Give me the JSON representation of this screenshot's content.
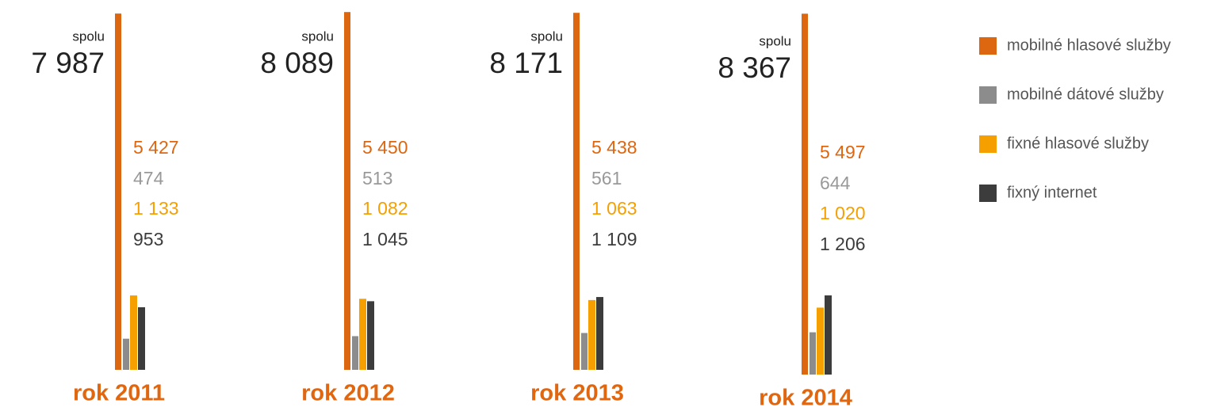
{
  "chart_data": {
    "type": "bar",
    "categories": [
      "rok 2011",
      "rok 2012",
      "rok 2013",
      "rok 2014"
    ],
    "total_label": "spolu",
    "totals": {
      "values": [
        7987,
        8089,
        8171,
        8367
      ],
      "value_labels": [
        "7 987",
        "8 089",
        "8 171",
        "8 367"
      ]
    },
    "series": [
      {
        "name": "mobilné hlasové služby",
        "color": "#dd6611",
        "values": [
          5427,
          5450,
          5438,
          5497
        ],
        "value_labels": [
          "5 427",
          "5 450",
          "5 438",
          "5 497"
        ]
      },
      {
        "name": "mobilné dátové služby",
        "color": "#8c8c8c",
        "values": [
          474,
          513,
          561,
          644
        ],
        "value_labels": [
          "474",
          "513",
          "561",
          "644"
        ]
      },
      {
        "name": "fixné hlasové služby",
        "color": "#f5a000",
        "values": [
          1133,
          1082,
          1063,
          1020
        ],
        "value_labels": [
          "1 133",
          "1 082",
          "1 063",
          "1 020"
        ]
      },
      {
        "name": "fixný internet",
        "color": "#3c3c3c",
        "values": [
          953,
          1045,
          1109,
          1206
        ],
        "value_labels": [
          "953",
          "1 045",
          "1 109",
          "1 206"
        ]
      }
    ]
  }
}
